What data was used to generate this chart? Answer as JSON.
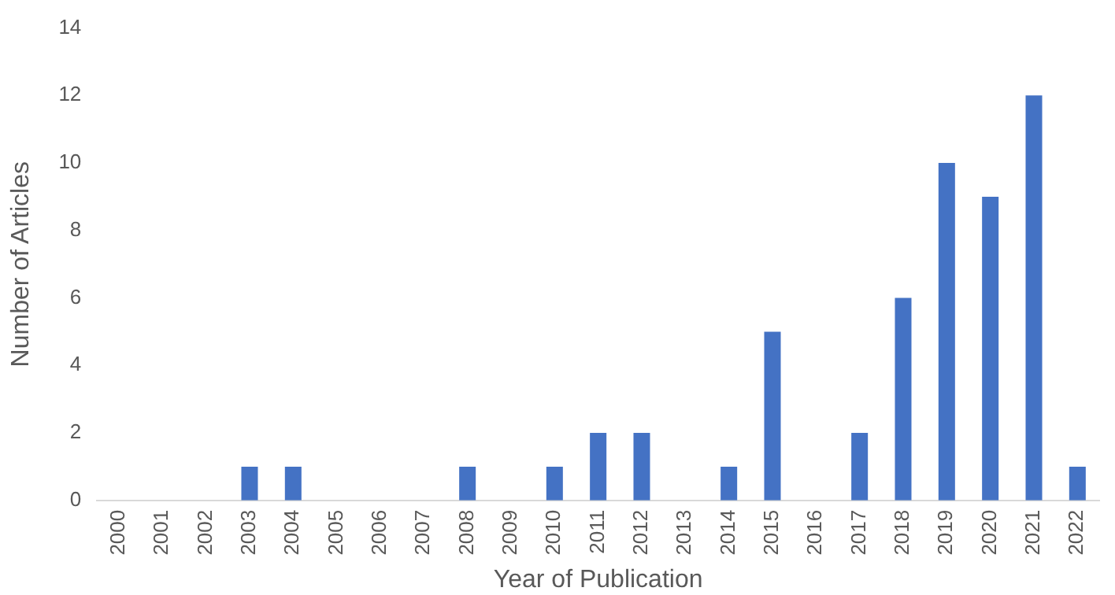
{
  "chart_data": {
    "type": "bar",
    "xlabel": "Year of Publication",
    "ylabel": "Number of Articles",
    "categories": [
      "2000",
      "2001",
      "2002",
      "2003",
      "2004",
      "2005",
      "2006",
      "2007",
      "2008",
      "2009",
      "2010",
      "2011",
      "2012",
      "2013",
      "2014",
      "2015",
      "2016",
      "2017",
      "2018",
      "2019",
      "2020",
      "2021",
      "2022"
    ],
    "values": [
      0,
      0,
      0,
      1,
      1,
      0,
      0,
      0,
      1,
      0,
      1,
      2,
      2,
      0,
      1,
      5,
      0,
      2,
      6,
      10,
      9,
      12,
      1
    ],
    "color": "#4472c4",
    "ylim": [
      0,
      14
    ],
    "yticks": [
      0,
      2,
      4,
      6,
      8,
      10,
      12,
      14
    ],
    "grid": false,
    "legend": false
  }
}
